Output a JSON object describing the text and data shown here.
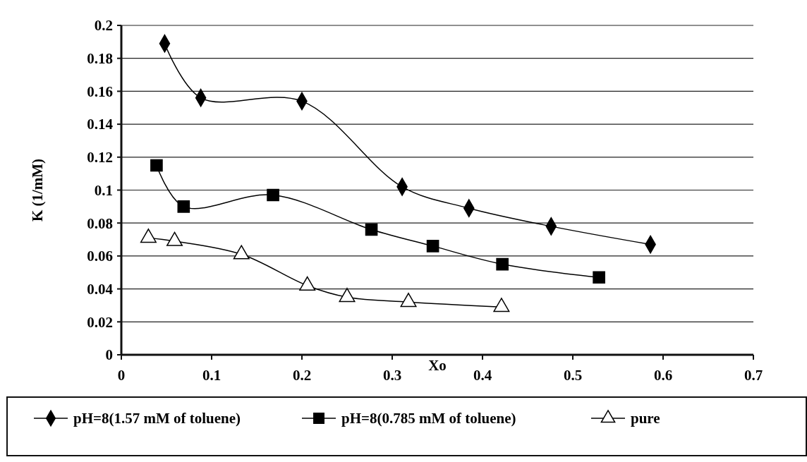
{
  "chart_data": {
    "type": "line",
    "xlabel": "Xo",
    "ylabel": "K (1/mM)",
    "xlim": [
      0,
      0.7
    ],
    "xticks": [
      0,
      0.1,
      0.2,
      0.3,
      0.4,
      0.5,
      0.6,
      0.7
    ],
    "ylim": [
      0,
      0.2
    ],
    "yticks": [
      0,
      0.02,
      0.04,
      0.06,
      0.08,
      0.1,
      0.12,
      0.14,
      0.16,
      0.18,
      0.2
    ],
    "grid": "y",
    "legend": "bottom",
    "line_style": "solid",
    "series": [
      {
        "name": "pH=8(1.57 mM of toluene)",
        "color": "#000000",
        "marker": "diamond",
        "x": [
          0.048,
          0.088,
          0.2,
          0.311,
          0.385,
          0.476,
          0.586
        ],
        "values": [
          0.189,
          0.156,
          0.154,
          0.102,
          0.089,
          0.078,
          0.067
        ]
      },
      {
        "name": "pH=8(0.785 mM of toluene)",
        "color": "#000000",
        "marker": "square",
        "x": [
          0.039,
          0.069,
          0.168,
          0.277,
          0.345,
          0.422,
          0.529
        ],
        "values": [
          0.115,
          0.09,
          0.097,
          0.076,
          0.066,
          0.055,
          0.047
        ]
      },
      {
        "name": "pure",
        "color": "#000000",
        "marker": "triangle",
        "x": [
          0.03,
          0.059,
          0.133,
          0.206,
          0.25,
          0.318,
          0.421
        ],
        "values": [
          0.071,
          0.069,
          0.061,
          0.042,
          0.035,
          0.032,
          0.029
        ]
      }
    ]
  }
}
